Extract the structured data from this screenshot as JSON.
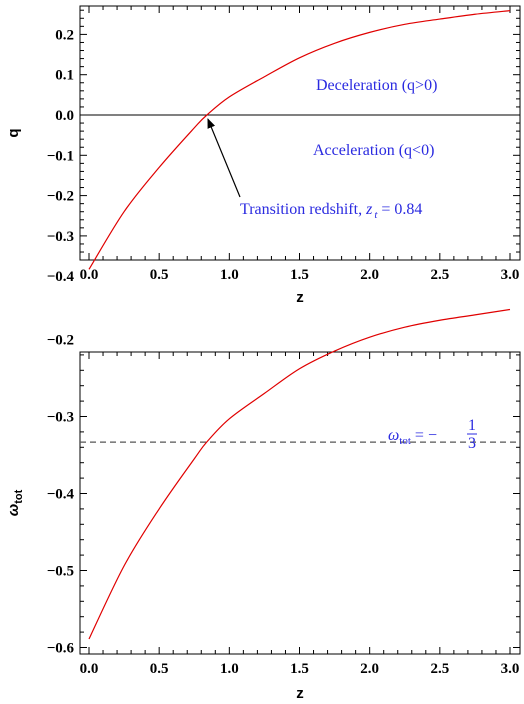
{
  "chart_data": [
    {
      "type": "line",
      "xlabel": "z",
      "ylabel": "q",
      "xlim": [
        0.0,
        3.0
      ],
      "ylim": [
        -0.4,
        0.25
      ],
      "xticks": [
        "0.0",
        "0.5",
        "1.0",
        "1.5",
        "2.0",
        "2.5",
        "3.0"
      ],
      "yticks": [
        "−0.4",
        "−0.3",
        "−0.2",
        "−0.1",
        "0.0",
        "0.1",
        "0.2"
      ],
      "series": [
        {
          "color": "#e00000",
          "x": [
            0.0,
            0.25,
            0.5,
            0.75,
            0.84,
            1.0,
            1.25,
            1.5,
            1.75,
            2.0,
            2.25,
            2.5,
            2.75,
            3.0
          ],
          "y": [
            -0.383,
            -0.24,
            -0.13,
            -0.032,
            0.0,
            0.045,
            0.095,
            0.142,
            0.178,
            0.205,
            0.225,
            0.238,
            0.25,
            0.259
          ]
        }
      ],
      "reference_line": {
        "y": 0.0,
        "color": "#000000",
        "style": "solid"
      },
      "annotations": {
        "deceleration": "Deceleration (q>0)",
        "acceleration": "Acceleration (q<0)",
        "transition_prefix": "Transition redshift, ",
        "transition_symbol": "z",
        "transition_sub": "t",
        "transition_value": " = 0.84"
      },
      "arrow_target": {
        "x": 0.84,
        "y": 0.0
      }
    },
    {
      "type": "line",
      "xlabel": "z",
      "ylabel": "ω",
      "ylabel_sub": "tot",
      "xlim": [
        0.0,
        3.0
      ],
      "ylim": [
        -0.6,
        -0.15
      ],
      "xticks": [
        "0.0",
        "0.5",
        "1.0",
        "1.5",
        "2.0",
        "2.5",
        "3.0"
      ],
      "yticks": [
        "−0.6",
        "−0.5",
        "−0.4",
        "−0.3",
        "−0.2"
      ],
      "series": [
        {
          "color": "#e00000",
          "x": [
            0.0,
            0.25,
            0.5,
            0.75,
            0.84,
            1.0,
            1.25,
            1.5,
            1.75,
            2.0,
            2.25,
            2.5,
            2.75,
            3.0
          ],
          "y": [
            -0.589,
            -0.494,
            -0.42,
            -0.355,
            -0.333,
            -0.303,
            -0.27,
            -0.238,
            -0.215,
            -0.197,
            -0.184,
            -0.175,
            -0.168,
            -0.161
          ]
        }
      ],
      "reference_line": {
        "y": -0.3333,
        "color": "#555555",
        "style": "dashed"
      },
      "annotations": {
        "omega_symbol": "ω",
        "omega_sub": "tot",
        "omega_eq": " = −",
        "frac_num": "1",
        "frac_den": "3"
      }
    }
  ]
}
